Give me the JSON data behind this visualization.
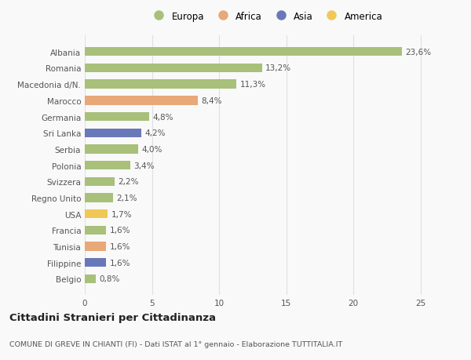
{
  "categories": [
    "Albania",
    "Romania",
    "Macedonia d/N.",
    "Marocco",
    "Germania",
    "Sri Lanka",
    "Serbia",
    "Polonia",
    "Svizzera",
    "Regno Unito",
    "USA",
    "Francia",
    "Tunisia",
    "Filippine",
    "Belgio"
  ],
  "values": [
    23.6,
    13.2,
    11.3,
    8.4,
    4.8,
    4.2,
    4.0,
    3.4,
    2.2,
    2.1,
    1.7,
    1.6,
    1.6,
    1.6,
    0.8
  ],
  "labels": [
    "23,6%",
    "13,2%",
    "11,3%",
    "8,4%",
    "4,8%",
    "4,2%",
    "4,0%",
    "3,4%",
    "2,2%",
    "2,1%",
    "1,7%",
    "1,6%",
    "1,6%",
    "1,6%",
    "0,8%"
  ],
  "continents": [
    "Europa",
    "Europa",
    "Europa",
    "Africa",
    "Europa",
    "Asia",
    "Europa",
    "Europa",
    "Europa",
    "Europa",
    "America",
    "Europa",
    "Africa",
    "Asia",
    "Europa"
  ],
  "colors": {
    "Europa": "#a8c07a",
    "Africa": "#e8a878",
    "Asia": "#6878b8",
    "America": "#f0c855"
  },
  "xlim": [
    0,
    27
  ],
  "xticks": [
    0,
    5,
    10,
    15,
    20,
    25
  ],
  "title": "Cittadini Stranieri per Cittadinanza",
  "subtitle": "COMUNE DI GREVE IN CHIANTI (FI) - Dati ISTAT al 1° gennaio - Elaborazione TUTTITALIA.IT",
  "bg_color": "#f9f9f9",
  "bar_height": 0.55,
  "label_fontsize": 7.5,
  "tick_fontsize": 7.5,
  "grid_color": "#e0e0e0",
  "legend_order": [
    "Europa",
    "Africa",
    "Asia",
    "America"
  ]
}
